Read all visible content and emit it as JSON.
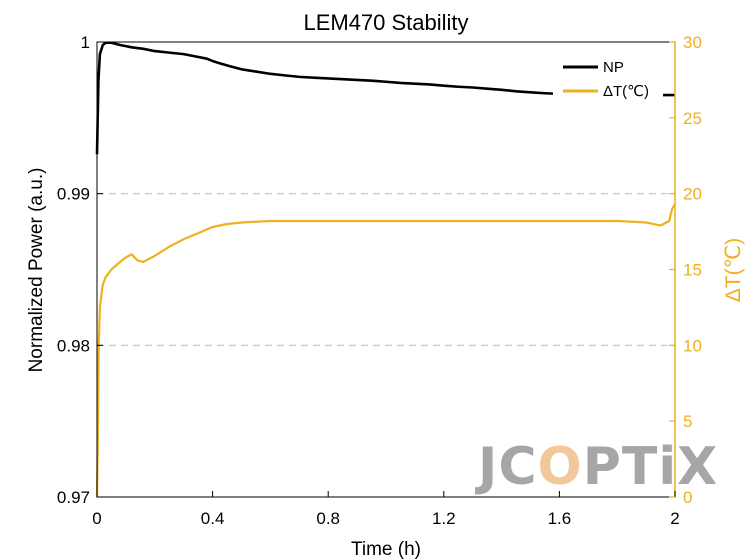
{
  "chart_data": {
    "type": "line",
    "title": "LEM470 Stability",
    "xlabel": "Time (h)",
    "ylabel_left": "Normalized Power (a.u.)",
    "ylabel_right": "ΔT(℃)",
    "xlim": [
      0,
      2
    ],
    "ylim_left": [
      0.97,
      1
    ],
    "ylim_right": [
      0,
      30
    ],
    "x_ticks": [
      0,
      0.4,
      0.8,
      1.2,
      1.6,
      2
    ],
    "x_tick_labels": [
      "0",
      "0.4",
      "0.8",
      "1.2",
      "1.6",
      "2"
    ],
    "y_left_ticks": [
      0.97,
      0.98,
      0.99,
      1
    ],
    "y_left_tick_labels": [
      "0.97",
      "0.98",
      "0.99",
      "1"
    ],
    "y_right_ticks": [
      0,
      5,
      10,
      15,
      20,
      25,
      30
    ],
    "y_right_tick_labels": [
      "0",
      "5",
      "10",
      "15",
      "20",
      "25",
      "30"
    ],
    "grid": "horizontal-dashed",
    "legend": "top-right",
    "series": [
      {
        "name": "NP",
        "axis": "left",
        "color": "#000000",
        "x": [
          0,
          0.005,
          0.01,
          0.02,
          0.03,
          0.05,
          0.08,
          0.12,
          0.16,
          0.2,
          0.25,
          0.3,
          0.34,
          0.38,
          0.4,
          0.42,
          0.46,
          0.5,
          0.55,
          0.6,
          0.65,
          0.7,
          0.75,
          0.8,
          0.85,
          0.9,
          0.95,
          1.0,
          1.05,
          1.1,
          1.15,
          1.2,
          1.25,
          1.3,
          1.35,
          1.4,
          1.45,
          1.5,
          1.55,
          1.6,
          1.65,
          1.7,
          1.75,
          1.8,
          1.85,
          1.9,
          1.95,
          2.0
        ],
        "values": [
          0.9926,
          0.9975,
          0.9992,
          0.9998,
          0.99995,
          0.99995,
          0.9998,
          0.99965,
          0.99955,
          0.9994,
          0.9993,
          0.9992,
          0.99905,
          0.9989,
          0.99875,
          0.99862,
          0.9984,
          0.9982,
          0.99805,
          0.9979,
          0.9978,
          0.9977,
          0.99765,
          0.9976,
          0.99755,
          0.9975,
          0.99745,
          0.99738,
          0.9973,
          0.99725,
          0.9972,
          0.99712,
          0.99705,
          0.997,
          0.99692,
          0.99685,
          0.99675,
          0.99668,
          0.99662,
          0.99658,
          0.99655,
          0.99652,
          0.9965,
          0.99648,
          0.99646,
          0.99648,
          0.9965,
          0.9965
        ]
      },
      {
        "name": "ΔT(℃)",
        "axis": "right",
        "color": "#EDB120",
        "x": [
          0,
          0.003,
          0.006,
          0.01,
          0.015,
          0.02,
          0.03,
          0.05,
          0.08,
          0.1,
          0.12,
          0.14,
          0.16,
          0.2,
          0.25,
          0.3,
          0.35,
          0.4,
          0.45,
          0.5,
          0.6,
          0.7,
          0.8,
          0.9,
          1.0,
          1.1,
          1.2,
          1.3,
          1.4,
          1.5,
          1.6,
          1.7,
          1.8,
          1.9,
          1.95,
          1.98,
          1.99,
          2.0
        ],
        "values": [
          0,
          4,
          10,
          12.5,
          13.3,
          14.0,
          14.5,
          15.0,
          15.5,
          15.8,
          16.0,
          15.6,
          15.5,
          15.9,
          16.5,
          17.0,
          17.4,
          17.8,
          18.0,
          18.1,
          18.2,
          18.2,
          18.2,
          18.2,
          18.2,
          18.2,
          18.2,
          18.2,
          18.2,
          18.2,
          18.2,
          18.2,
          18.2,
          18.1,
          17.9,
          18.2,
          19.0,
          19.3
        ]
      }
    ],
    "watermark": "JCOPTIX"
  }
}
